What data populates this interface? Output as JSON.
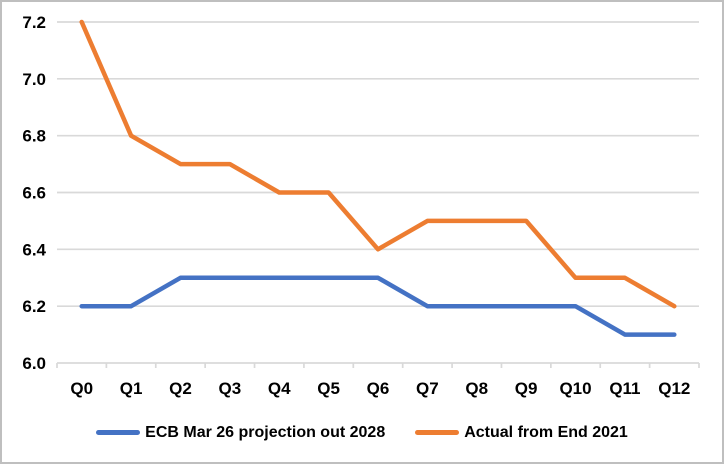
{
  "chart_data": {
    "type": "line",
    "title": "",
    "categories": [
      "Q0",
      "Q1",
      "Q2",
      "Q3",
      "Q4",
      "Q5",
      "Q6",
      "Q7",
      "Q8",
      "Q9",
      "Q10",
      "Q11",
      "Q12"
    ],
    "series": [
      {
        "name": "ECB Mar 26 projection out 2028",
        "color": "#4472C4",
        "values": [
          6.2,
          6.2,
          6.3,
          6.3,
          6.3,
          6.3,
          6.3,
          6.2,
          6.2,
          6.2,
          6.2,
          6.1,
          6.1
        ]
      },
      {
        "name": "Actual from End 2021",
        "color": "#ED7D31",
        "values": [
          7.2,
          6.8,
          6.7,
          6.7,
          6.6,
          6.6,
          6.4,
          6.5,
          6.5,
          6.5,
          6.3,
          6.3,
          6.2
        ]
      }
    ],
    "xlabel": "",
    "ylabel": "",
    "ylim": [
      6.0,
      7.2
    ],
    "ytick_step": 0.2,
    "ytick_labels": [
      "6.0",
      "6.2",
      "6.4",
      "6.6",
      "6.8",
      "7.0",
      "7.2"
    ],
    "grid": true,
    "legend_position": "bottom",
    "colors": {
      "gridline": "#D9D9D9",
      "axis_line": "#D9D9D9",
      "label_text": "#000000",
      "background": "#FFFFFF",
      "frame_border": "#BFBFBF"
    }
  }
}
